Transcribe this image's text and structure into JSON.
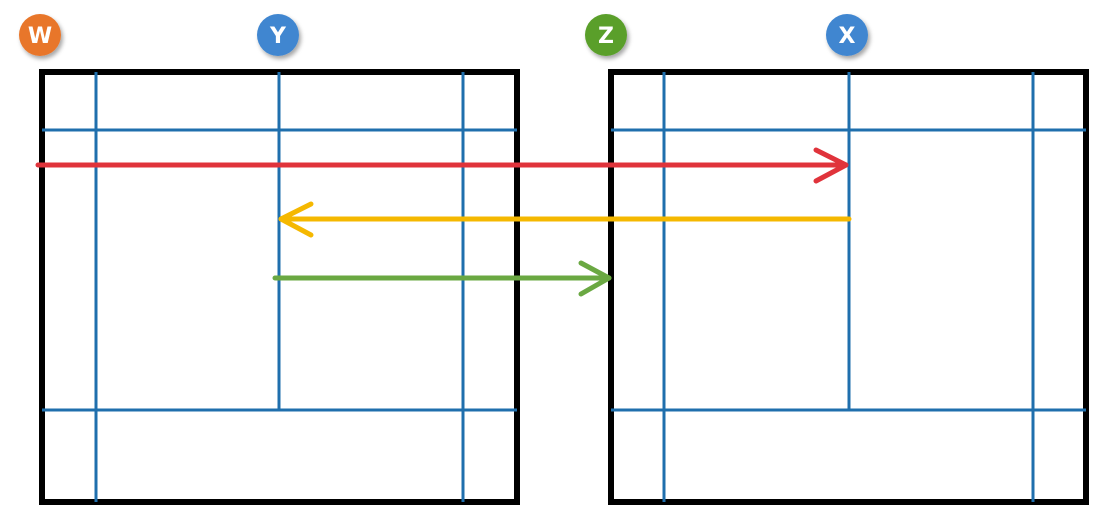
{
  "badges": {
    "w": {
      "label": "W",
      "color": "#e8762b"
    },
    "y": {
      "label": "Y",
      "color": "#3f86d0"
    },
    "z": {
      "label": "Z",
      "color": "#5a9f2c"
    },
    "x": {
      "label": "X",
      "color": "#3f86d0"
    }
  },
  "colors": {
    "frame": "#000000",
    "grid": "#1f6fad",
    "arrow_red": "#e0333b",
    "arrow_yellow": "#f5b800",
    "arrow_green": "#6aa842"
  },
  "arrows": [
    {
      "name": "red-arrow",
      "direction": "right"
    },
    {
      "name": "yellow-arrow",
      "direction": "left"
    },
    {
      "name": "green-arrow",
      "direction": "right"
    }
  ]
}
